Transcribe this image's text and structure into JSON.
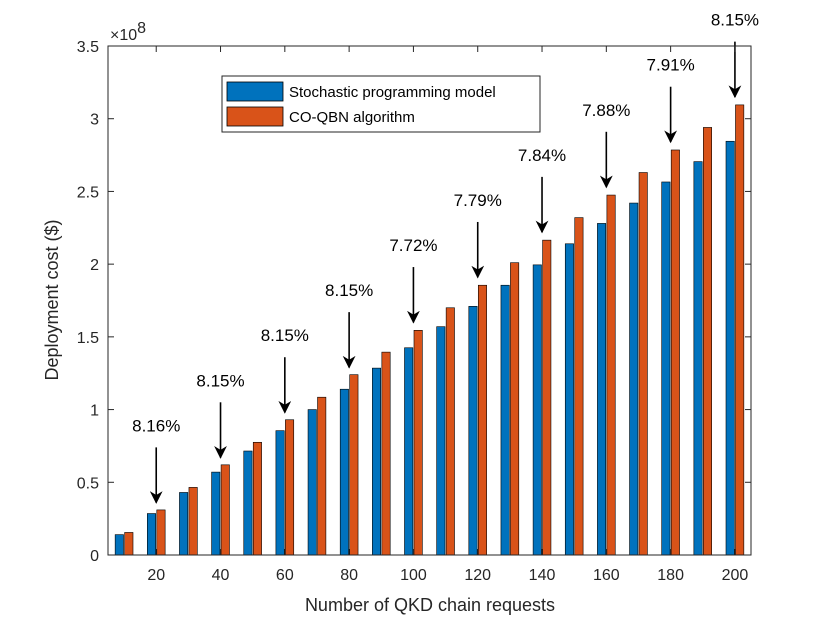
{
  "chart_data": {
    "type": "bar",
    "title": "",
    "xlabel": "Number of QKD chain requests",
    "ylabel": "Deployment cost ($)",
    "y_scale_label": "×10",
    "y_scale_exponent": "8",
    "ylim": [
      0,
      3.5
    ],
    "y_ticks": [
      0,
      0.5,
      1,
      1.5,
      2,
      2.5,
      3,
      3.5
    ],
    "y_tick_labels": [
      "0",
      "0.5",
      "1",
      "1.5",
      "2",
      "2.5",
      "3",
      "3.5"
    ],
    "categories": [
      10,
      20,
      30,
      40,
      50,
      60,
      70,
      80,
      90,
      100,
      110,
      120,
      130,
      140,
      150,
      160,
      170,
      180,
      190,
      200
    ],
    "x_ticks": [
      20,
      40,
      60,
      80,
      100,
      120,
      140,
      160,
      180,
      200
    ],
    "x_tick_labels": [
      "20",
      "40",
      "60",
      "80",
      "100",
      "120",
      "140",
      "160",
      "180",
      "200"
    ],
    "x_range": [
      5,
      205
    ],
    "series": [
      {
        "name": "Stochastic programming model",
        "color": "#0072BD",
        "values": [
          0.14,
          0.285,
          0.43,
          0.57,
          0.715,
          0.855,
          1.0,
          1.14,
          1.285,
          1.425,
          1.57,
          1.71,
          1.855,
          1.995,
          2.14,
          2.28,
          2.42,
          2.565,
          2.705,
          2.845
        ]
      },
      {
        "name": "CO-QBN algorithm",
        "color": "#D95319",
        "values": [
          0.155,
          0.31,
          0.465,
          0.62,
          0.775,
          0.93,
          1.085,
          1.24,
          1.395,
          1.545,
          1.7,
          1.855,
          2.01,
          2.165,
          2.32,
          2.475,
          2.63,
          2.785,
          2.94,
          3.095
        ]
      }
    ],
    "annotations": [
      {
        "text": "8.16%",
        "x": 20,
        "label_y": 0.85,
        "arrow_tail": 0.74,
        "arrow_head": 0.36
      },
      {
        "text": "8.15%",
        "x": 40,
        "label_y": 1.16,
        "arrow_tail": 1.05,
        "arrow_head": 0.67
      },
      {
        "text": "8.15%",
        "x": 60,
        "label_y": 1.47,
        "arrow_tail": 1.36,
        "arrow_head": 0.98
      },
      {
        "text": "8.15%",
        "x": 80,
        "label_y": 1.78,
        "arrow_tail": 1.67,
        "arrow_head": 1.29
      },
      {
        "text": "7.72%",
        "x": 100,
        "label_y": 2.09,
        "arrow_tail": 1.98,
        "arrow_head": 1.6
      },
      {
        "text": "7.79%",
        "x": 120,
        "label_y": 2.4,
        "arrow_tail": 2.29,
        "arrow_head": 1.91
      },
      {
        "text": "7.84%",
        "x": 140,
        "label_y": 2.71,
        "arrow_tail": 2.6,
        "arrow_head": 2.22
      },
      {
        "text": "7.88%",
        "x": 160,
        "label_y": 3.02,
        "arrow_tail": 2.91,
        "arrow_head": 2.53
      },
      {
        "text": "7.91%",
        "x": 180,
        "label_y": 3.33,
        "arrow_tail": 3.22,
        "arrow_head": 2.84
      },
      {
        "text": "8.15%",
        "x": 200,
        "label_y": 3.64,
        "arrow_tail": 3.53,
        "arrow_head": 3.15
      }
    ],
    "legend_position": "top-center",
    "grid": false
  }
}
